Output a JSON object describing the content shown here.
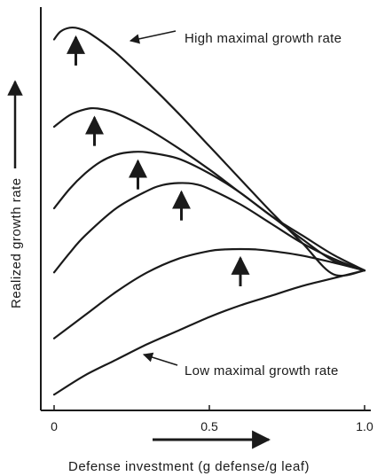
{
  "chart_data": {
    "type": "line",
    "title": "",
    "xlabel": "Defense investment (g defense/g leaf)",
    "ylabel": "Realized growth rate",
    "xlim": [
      0,
      1
    ],
    "ylim": [
      0,
      1
    ],
    "x_ticks": [
      {
        "value": 0,
        "label": "0"
      },
      {
        "value": 0.5,
        "label": "0.5"
      },
      {
        "value": 1.0,
        "label": "1.0"
      }
    ],
    "y_ticks": [],
    "grid": false,
    "color": "#1a1a1a",
    "series": [
      {
        "x": [
          0,
          0.02,
          0.05,
          0.08,
          0.12,
          0.2,
          0.3,
          0.4,
          0.5,
          0.6,
          0.7,
          0.8,
          0.9,
          1.0
        ],
        "y": [
          0.935,
          0.955,
          0.965,
          0.963,
          0.948,
          0.9,
          0.825,
          0.745,
          0.66,
          0.575,
          0.49,
          0.41,
          0.33,
          0.34
        ],
        "peak_x": 0.07
      },
      {
        "x": [
          0,
          0.05,
          0.1,
          0.14,
          0.2,
          0.3,
          0.4,
          0.5,
          0.6,
          0.7,
          0.8,
          0.9,
          1.0
        ],
        "y": [
          0.71,
          0.74,
          0.755,
          0.757,
          0.745,
          0.705,
          0.655,
          0.6,
          0.54,
          0.48,
          0.42,
          0.365,
          0.34
        ],
        "peak_x": 0.13
      },
      {
        "x": [
          0,
          0.05,
          0.1,
          0.15,
          0.2,
          0.25,
          0.3,
          0.4,
          0.5,
          0.6,
          0.7,
          0.8,
          0.9,
          1.0
        ],
        "y": [
          0.5,
          0.55,
          0.59,
          0.62,
          0.638,
          0.645,
          0.644,
          0.628,
          0.59,
          0.54,
          0.48,
          0.43,
          0.38,
          0.34
        ],
        "peak_x": 0.27
      },
      {
        "x": [
          0,
          0.05,
          0.1,
          0.2,
          0.3,
          0.35,
          0.4,
          0.45,
          0.5,
          0.6,
          0.7,
          0.8,
          0.9,
          1.0
        ],
        "y": [
          0.335,
          0.385,
          0.43,
          0.5,
          0.545,
          0.56,
          0.565,
          0.563,
          0.55,
          0.51,
          0.46,
          0.41,
          0.37,
          0.34
        ],
        "peak_x": 0.41
      },
      {
        "x": [
          0,
          0.1,
          0.2,
          0.3,
          0.4,
          0.5,
          0.55,
          0.6,
          0.65,
          0.7,
          0.8,
          0.9,
          1.0
        ],
        "y": [
          0.165,
          0.225,
          0.285,
          0.335,
          0.37,
          0.39,
          0.394,
          0.395,
          0.394,
          0.39,
          0.378,
          0.36,
          0.34
        ],
        "peak_x": 0.6
      },
      {
        "x": [
          0,
          0.1,
          0.2,
          0.3,
          0.4,
          0.5,
          0.6,
          0.7,
          0.8,
          0.9,
          1.0
        ],
        "y": [
          0.02,
          0.07,
          0.11,
          0.15,
          0.185,
          0.22,
          0.25,
          0.275,
          0.3,
          0.32,
          0.34
        ]
      }
    ],
    "annotations": [
      {
        "text": "High maximal growth rate",
        "points_to_series": 0
      },
      {
        "text": "Low maximal growth rate",
        "points_to_series": 5
      }
    ],
    "axis_direction_arrows": [
      "x",
      "y"
    ]
  }
}
